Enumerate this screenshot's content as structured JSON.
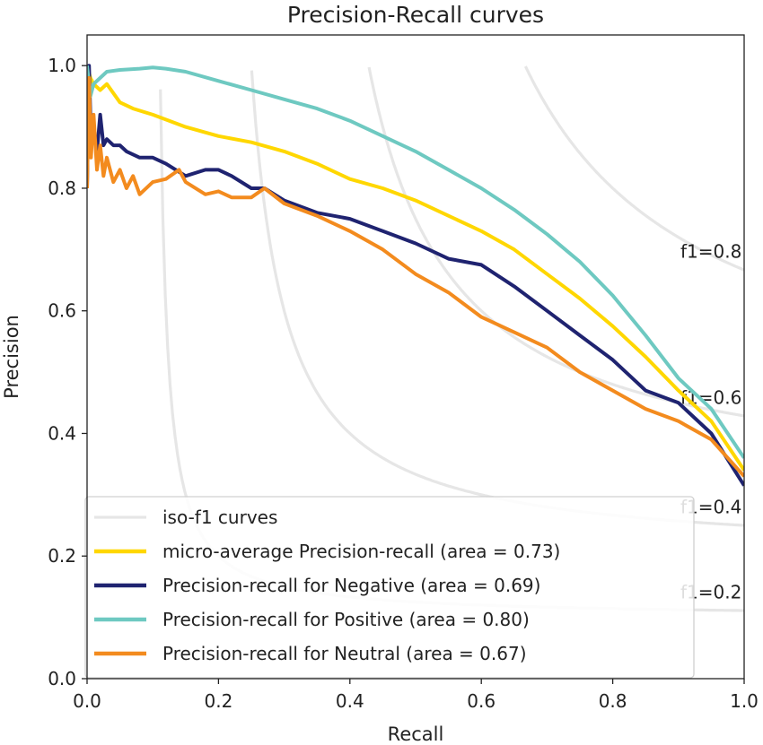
{
  "chart_data": {
    "type": "line",
    "title": "Precision-Recall curves",
    "xlabel": "Recall",
    "ylabel": "Precision",
    "xlim": [
      0.0,
      1.0
    ],
    "ylim": [
      0.0,
      1.05
    ],
    "xticks": [
      "0.0",
      "0.2",
      "0.4",
      "0.6",
      "0.8",
      "1.0"
    ],
    "yticks": [
      "0.0",
      "0.2",
      "0.4",
      "0.6",
      "0.8",
      "1.0"
    ],
    "grid": false,
    "legend_position": "lower-left",
    "iso_f1": {
      "values": [
        0.2,
        0.4,
        0.6,
        0.8
      ],
      "labels": [
        "f1=0.2",
        "f1=0.4",
        "f1=0.6",
        "f1=0.8"
      ],
      "color": "#e6e6e6"
    },
    "series": [
      {
        "name": "iso-f1 curves",
        "legend_label": "iso-f1 curves",
        "color": "#e6e6e6",
        "legend_only": true
      },
      {
        "name": "micro-average",
        "legend_label": "micro-average Precision-recall (area = 0.73)",
        "color": "#ffd700",
        "x": [
          0.0,
          0.005,
          0.01,
          0.02,
          0.03,
          0.05,
          0.07,
          0.1,
          0.15,
          0.2,
          0.25,
          0.3,
          0.35,
          0.4,
          0.45,
          0.5,
          0.55,
          0.6,
          0.65,
          0.7,
          0.75,
          0.8,
          0.85,
          0.9,
          0.95,
          1.0
        ],
        "y": [
          1.0,
          0.98,
          0.97,
          0.96,
          0.97,
          0.94,
          0.93,
          0.92,
          0.9,
          0.885,
          0.875,
          0.86,
          0.84,
          0.815,
          0.8,
          0.78,
          0.755,
          0.73,
          0.7,
          0.66,
          0.62,
          0.575,
          0.525,
          0.47,
          0.42,
          0.34
        ]
      },
      {
        "name": "Negative",
        "legend_label": "Precision-recall for Negative (area = 0.69)",
        "color": "#1f2370",
        "x": [
          0.0,
          0.003,
          0.006,
          0.01,
          0.015,
          0.02,
          0.025,
          0.03,
          0.04,
          0.05,
          0.06,
          0.08,
          0.1,
          0.12,
          0.15,
          0.18,
          0.2,
          0.22,
          0.25,
          0.27,
          0.3,
          0.35,
          0.4,
          0.45,
          0.5,
          0.55,
          0.6,
          0.65,
          0.7,
          0.75,
          0.8,
          0.85,
          0.9,
          0.95,
          1.0
        ],
        "y": [
          0.8,
          1.0,
          0.88,
          0.9,
          0.86,
          0.92,
          0.87,
          0.88,
          0.87,
          0.87,
          0.86,
          0.85,
          0.85,
          0.84,
          0.82,
          0.83,
          0.83,
          0.82,
          0.8,
          0.8,
          0.78,
          0.76,
          0.75,
          0.73,
          0.71,
          0.685,
          0.675,
          0.64,
          0.6,
          0.56,
          0.52,
          0.47,
          0.45,
          0.4,
          0.315
        ]
      },
      {
        "name": "Positive",
        "legend_label": "Precision-recall for Positive (area = 0.80)",
        "color": "#6ec9c1",
        "x": [
          0.0,
          0.005,
          0.01,
          0.02,
          0.03,
          0.05,
          0.08,
          0.1,
          0.12,
          0.15,
          0.2,
          0.25,
          0.3,
          0.35,
          0.4,
          0.45,
          0.5,
          0.55,
          0.6,
          0.65,
          0.7,
          0.75,
          0.8,
          0.85,
          0.9,
          0.95,
          1.0
        ],
        "y": [
          1.0,
          0.95,
          0.97,
          0.98,
          0.99,
          0.993,
          0.995,
          0.997,
          0.995,
          0.99,
          0.975,
          0.96,
          0.945,
          0.93,
          0.91,
          0.885,
          0.86,
          0.83,
          0.8,
          0.765,
          0.725,
          0.68,
          0.625,
          0.56,
          0.49,
          0.44,
          0.36
        ]
      },
      {
        "name": "Neutral",
        "legend_label": "Precision-recall for Neutral (area = 0.67)",
        "color": "#f38b1e",
        "x": [
          0.0,
          0.003,
          0.006,
          0.01,
          0.015,
          0.02,
          0.025,
          0.03,
          0.04,
          0.05,
          0.06,
          0.07,
          0.08,
          0.1,
          0.12,
          0.14,
          0.15,
          0.18,
          0.2,
          0.22,
          0.25,
          0.27,
          0.3,
          0.35,
          0.4,
          0.45,
          0.5,
          0.55,
          0.6,
          0.65,
          0.7,
          0.75,
          0.8,
          0.85,
          0.9,
          0.95,
          1.0
        ],
        "y": [
          0.8,
          0.98,
          0.85,
          0.92,
          0.83,
          0.87,
          0.82,
          0.85,
          0.81,
          0.83,
          0.8,
          0.82,
          0.79,
          0.81,
          0.815,
          0.83,
          0.81,
          0.79,
          0.795,
          0.785,
          0.785,
          0.8,
          0.775,
          0.755,
          0.73,
          0.7,
          0.66,
          0.63,
          0.59,
          0.565,
          0.54,
          0.5,
          0.47,
          0.44,
          0.42,
          0.39,
          0.33
        ]
      }
    ]
  }
}
